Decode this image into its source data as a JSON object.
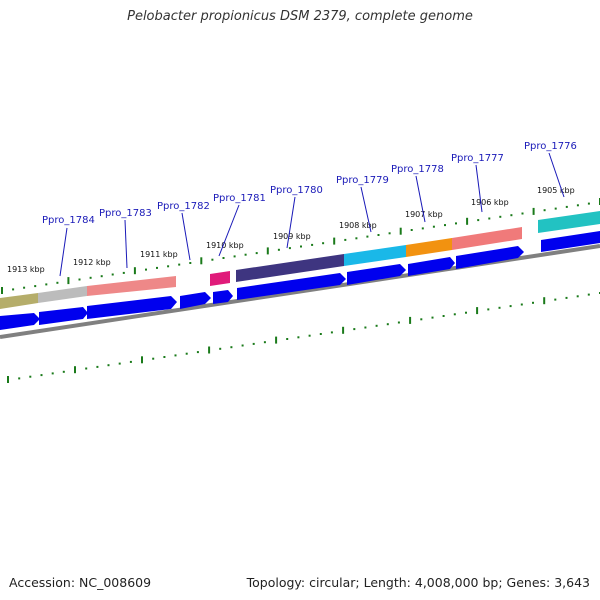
{
  "title": "Pelobacter propionicus DSM 2379, complete genome",
  "accession": "Accession: NC_008609",
  "topology": "Topology: circular; Length: 4,008,000 bp; Genes: 3,643",
  "genes": [
    {
      "id": "Ppro_1784",
      "label": "Ppro_1784"
    },
    {
      "id": "Ppro_1783",
      "label": "Ppro_1783"
    },
    {
      "id": "Ppro_1782",
      "label": "Ppro_1782"
    },
    {
      "id": "Ppro_1781",
      "label": "Ppro_1781"
    },
    {
      "id": "Ppro_1780",
      "label": "Ppro_1780"
    },
    {
      "id": "Ppro_1779",
      "label": "Ppro_1779"
    },
    {
      "id": "Ppro_1778",
      "label": "Ppro_1778"
    },
    {
      "id": "Ppro_1777",
      "label": "Ppro_1777"
    },
    {
      "id": "Ppro_1776",
      "label": "Ppro_1776"
    }
  ],
  "kbp_ticks": [
    {
      "label": "1913 kbp"
    },
    {
      "label": "1912 kbp"
    },
    {
      "label": "1911 kbp"
    },
    {
      "label": "1910 kbp"
    },
    {
      "label": "1909 kbp"
    },
    {
      "label": "1908 kbp"
    },
    {
      "label": "1907 kbp"
    },
    {
      "label": "1906 kbp"
    },
    {
      "label": "1905 kbp"
    }
  ],
  "colors": {
    "gene_arrow": "#0000ee",
    "backbone": "#888888",
    "tick": "#1a7a1a",
    "label": "#1a1ab8"
  }
}
